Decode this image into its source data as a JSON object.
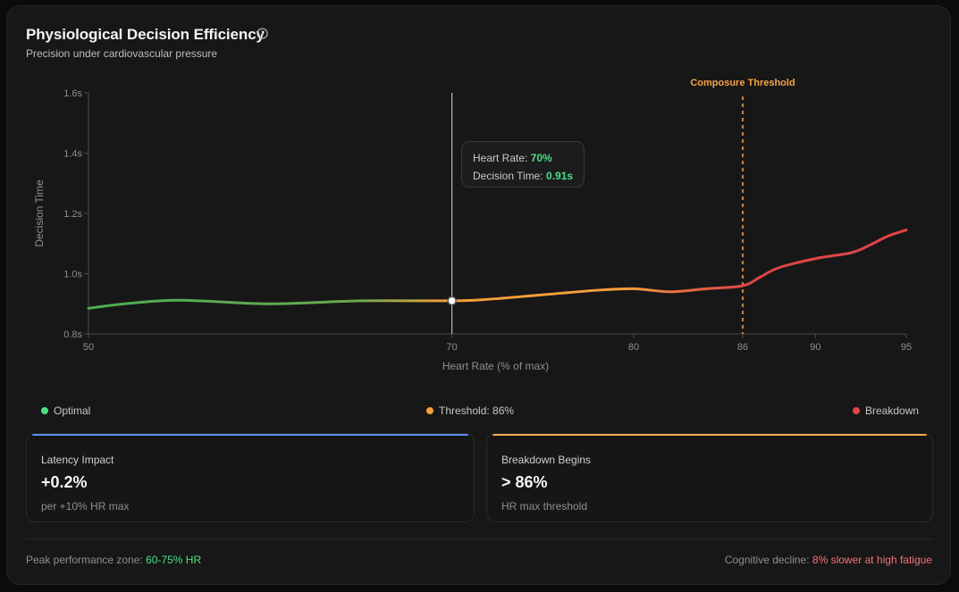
{
  "header": {
    "title": "Physiological Decision Efficiency",
    "subtitle": "Precision under cardiovascular pressure"
  },
  "tooltip": {
    "hr_label": "Heart Rate: ",
    "hr_value": "70%",
    "dt_label": "Decision Time: ",
    "dt_value": "0.91s"
  },
  "legend": {
    "optimal": "Optimal",
    "threshold": "Threshold: 86%",
    "breakdown": "Breakdown"
  },
  "stats": {
    "latency": {
      "label": "Latency Impact",
      "value": "+0.2%",
      "sub": "per +10% HR max"
    },
    "breakdown": {
      "label": "Breakdown Begins",
      "value": "> 86%",
      "sub": "HR max threshold"
    }
  },
  "footer": {
    "peak_label": "Peak performance zone: ",
    "peak_value": "60-75% HR",
    "decline_label": "Cognitive decline: ",
    "decline_value": "8% slower at high fatigue"
  },
  "colors": {
    "optimal": "#4ade80",
    "line_green": "#4caf50",
    "threshold": "#f59e3a",
    "breakdown": "#e04646",
    "latency_bar": "#5b8def",
    "breakdown_bar": "#f5a54a"
  },
  "chart_data": {
    "type": "line",
    "title": "Physiological Decision Efficiency",
    "xlabel": "Heart Rate (% of max)",
    "ylabel": "Decision Time",
    "xlim": [
      50,
      95
    ],
    "ylim": [
      0.8,
      1.6
    ],
    "x_ticks": [
      50,
      70,
      80,
      86,
      90,
      95
    ],
    "y_ticks": [
      0.8,
      1.0,
      1.2,
      1.4,
      1.6
    ],
    "y_tick_labels": [
      "0.8s",
      "1.0s",
      "1.2s",
      "1.4s",
      "1.6s"
    ],
    "series": [
      {
        "name": "Decision Time",
        "x": [
          50,
          52,
          55,
          60,
          65,
          70,
          72,
          75,
          78,
          80,
          82,
          84,
          86,
          87,
          88,
          90,
          92,
          93,
          94,
          95
        ],
        "y": [
          0.885,
          0.9,
          0.912,
          0.9,
          0.91,
          0.91,
          0.915,
          0.93,
          0.945,
          0.95,
          0.94,
          0.95,
          0.96,
          0.99,
          1.02,
          1.05,
          1.07,
          1.095,
          1.125,
          1.145
        ]
      }
    ],
    "threshold": {
      "x": 86,
      "label": "Composure Threshold"
    },
    "hover": {
      "x": 70,
      "y": 0.91
    }
  }
}
